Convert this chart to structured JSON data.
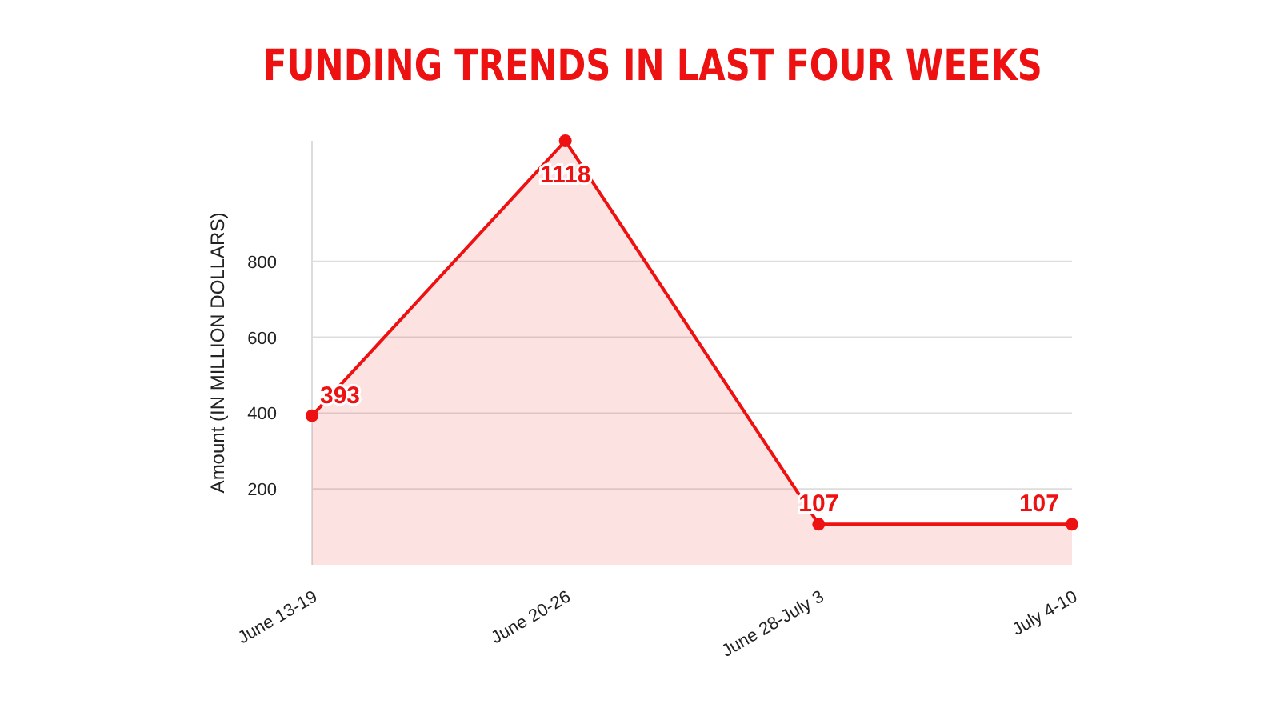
{
  "chart_data": {
    "type": "area",
    "title": "FUNDING TRENDS IN LAST FOUR WEEKS",
    "ylabel": "Amount (IN MILLION DOLLARS)",
    "categories": [
      "June 13-19",
      "June 20-26",
      "June 28-July 3",
      "July 4-10"
    ],
    "series": [
      {
        "color": "#ee1111",
        "values": [
          393,
          1118,
          107,
          107
        ]
      }
    ],
    "ylim": [
      0,
      1118
    ],
    "yticks": [
      200,
      400,
      600,
      800
    ],
    "grid": "y",
    "marker": "circle",
    "data_labels": true
  }
}
